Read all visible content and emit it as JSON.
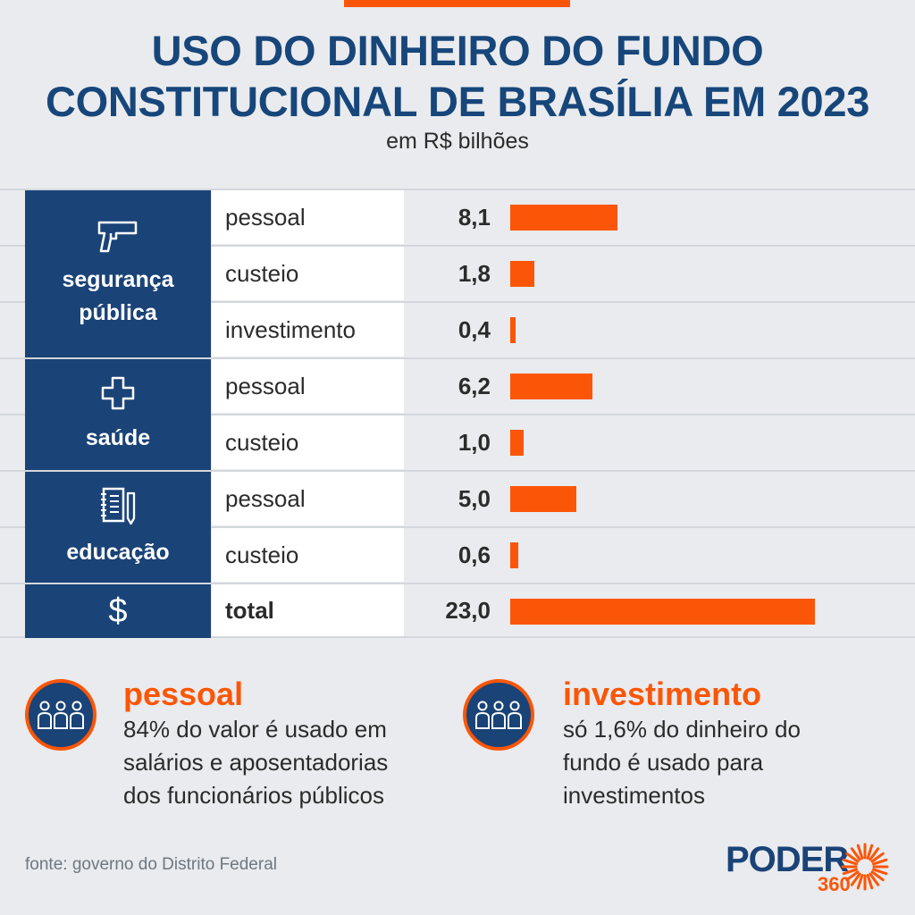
{
  "header": {
    "title_line1": "USO DO DINHEIRO DO FUNDO",
    "title_line2": "CONSTITUCIONAL DE BRASÍLIA EM 2023",
    "subtitle": "em R$ bilhões"
  },
  "colors": {
    "bar": "#fb5607",
    "group_bg": "#1a4377",
    "title": "#17467a"
  },
  "groups": [
    {
      "label_line1": "segurança",
      "label_line2": "pública",
      "icon": "gun-icon"
    },
    {
      "label_line1": "saúde",
      "label_line2": "",
      "icon": "cross-icon"
    },
    {
      "label_line1": "educação",
      "label_line2": "",
      "icon": "notebook-icon"
    },
    {
      "label_line1": "$",
      "label_line2": "",
      "icon": "dollar-icon"
    }
  ],
  "chart_data": {
    "type": "bar",
    "orientation": "horizontal",
    "unit": "R$ bilhões",
    "xlim": [
      0,
      23.0
    ],
    "rows": [
      {
        "group": "segurança pública",
        "label": "pessoal",
        "value": 8.1,
        "value_text": "8,1"
      },
      {
        "group": "segurança pública",
        "label": "custeio",
        "value": 1.8,
        "value_text": "1,8"
      },
      {
        "group": "segurança pública",
        "label": "investimento",
        "value": 0.4,
        "value_text": "0,4"
      },
      {
        "group": "saúde",
        "label": "pessoal",
        "value": 6.2,
        "value_text": "6,2"
      },
      {
        "group": "saúde",
        "label": "custeio",
        "value": 1.0,
        "value_text": "1,0"
      },
      {
        "group": "educação",
        "label": "pessoal",
        "value": 5.0,
        "value_text": "5,0"
      },
      {
        "group": "educação",
        "label": "custeio",
        "value": 0.6,
        "value_text": "0,6"
      },
      {
        "group": "",
        "label": "total",
        "value": 23.0,
        "value_text": "23,0"
      }
    ]
  },
  "notes": [
    {
      "icon": "people-icon",
      "title": "pessoal",
      "lines": [
        "84% do valor é usado em",
        "salários e aposentadorias",
        "dos funcionários públicos"
      ]
    },
    {
      "icon": "people-icon",
      "title": "investimento",
      "lines": [
        "só 1,6% do dinheiro do",
        "fundo é usado para",
        "investimentos"
      ]
    }
  ],
  "source": "fonte: governo do Distrito Federal",
  "logo": {
    "word": "PODER",
    "number": "360"
  }
}
